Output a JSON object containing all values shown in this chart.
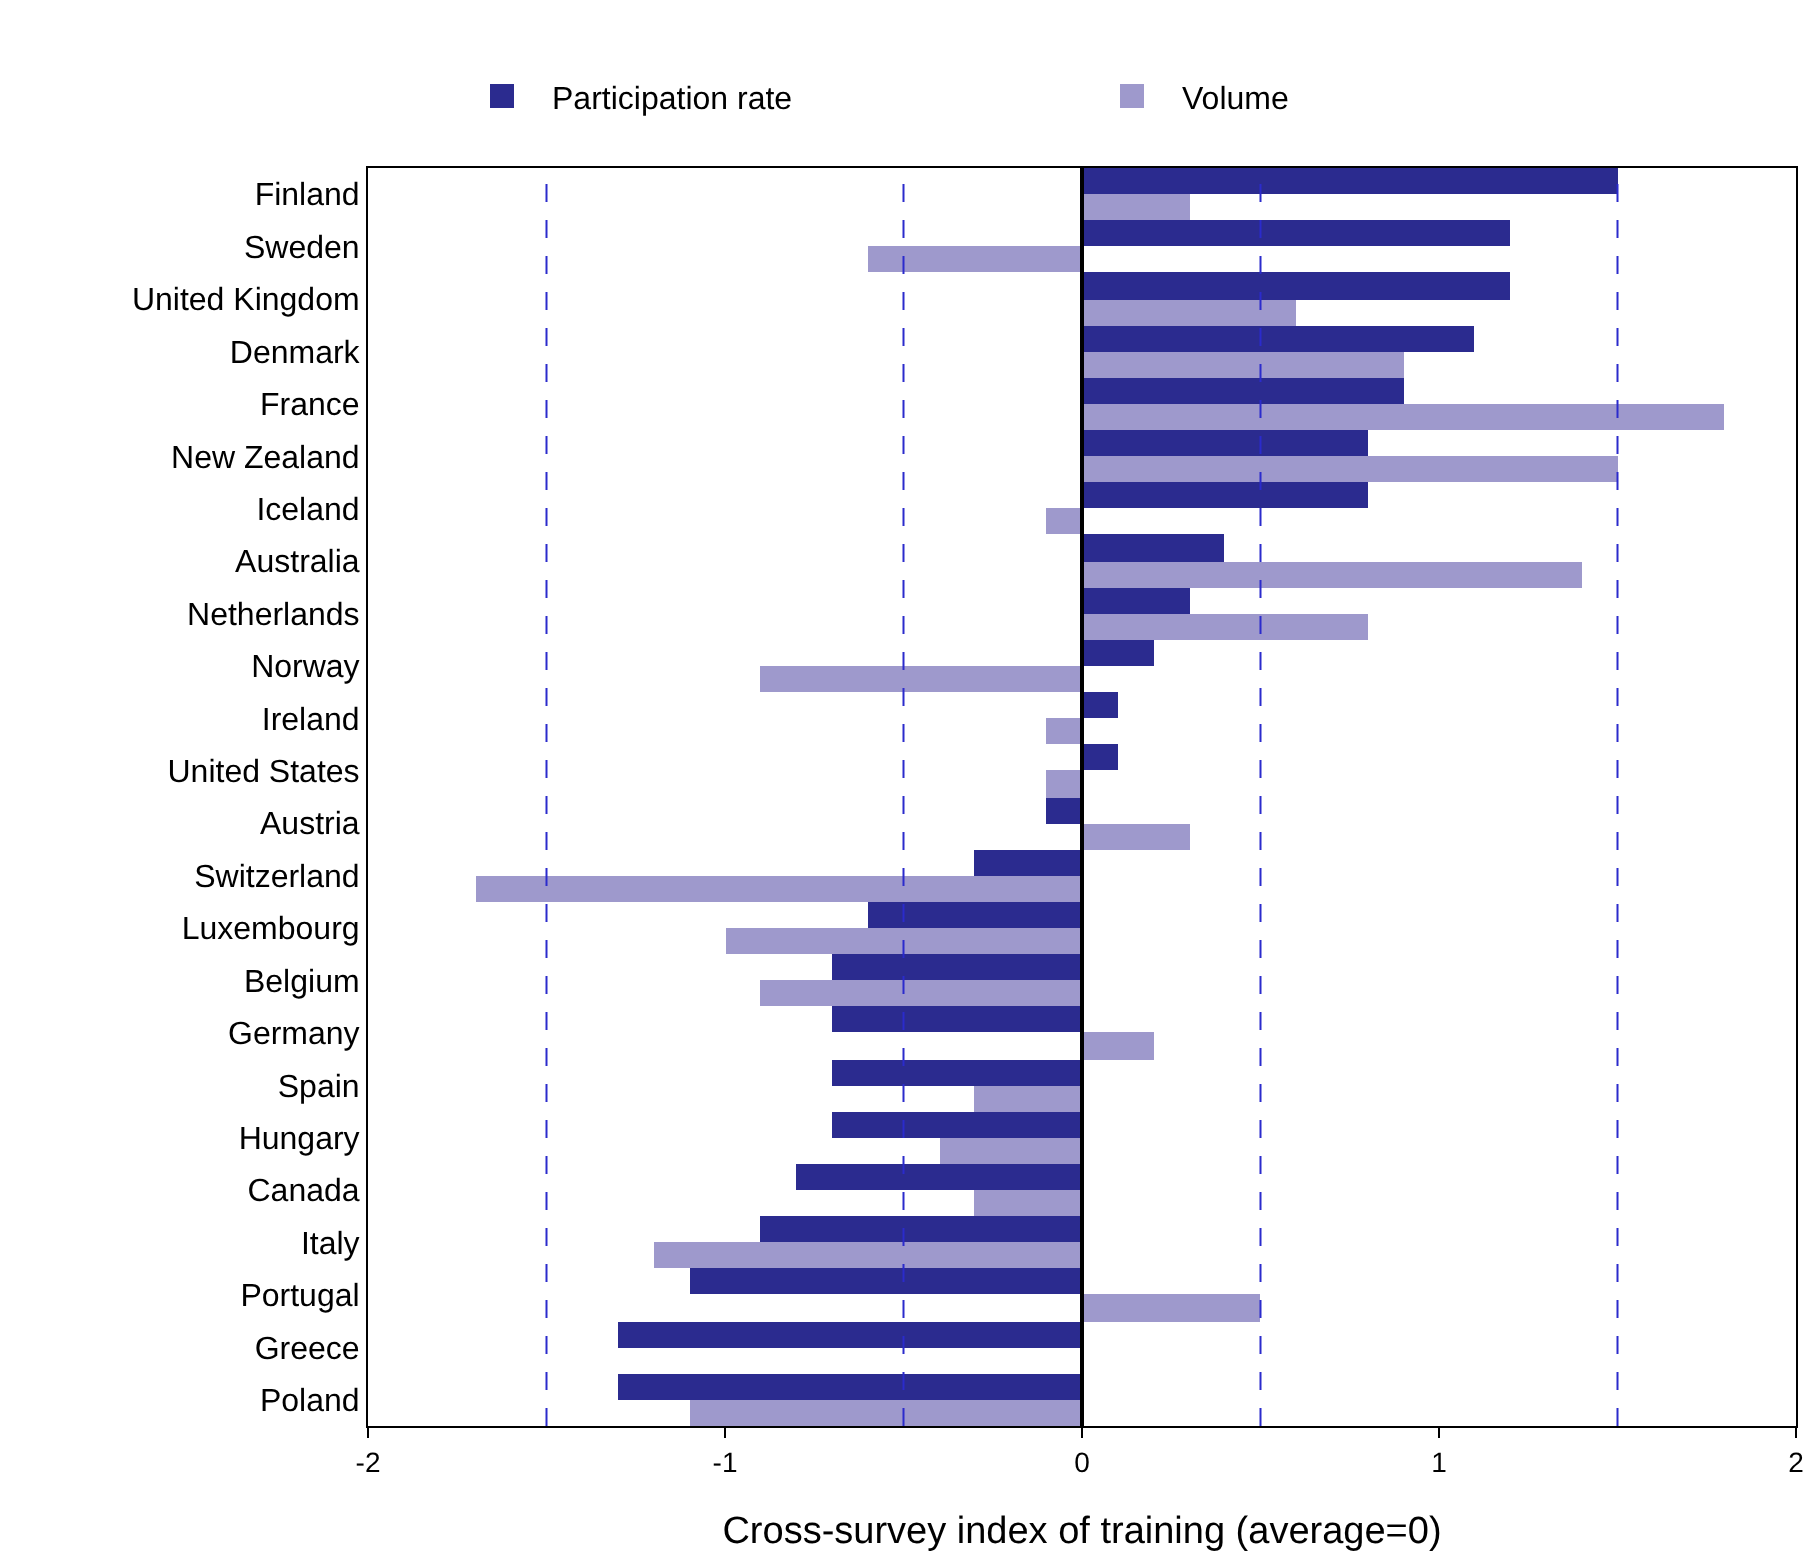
{
  "chart_data": {
    "type": "bar",
    "orientation": "horizontal",
    "xlabel": "Cross-survey index of training (average=0)",
    "categories": [
      "Finland",
      "Sweden",
      "United Kingdom",
      "Denmark",
      "France",
      "New Zealand",
      "Iceland",
      "Australia",
      "Netherlands",
      "Norway",
      "Ireland",
      "United States",
      "Austria",
      "Switzerland",
      "Luxembourg",
      "Belgium",
      "Germany",
      "Spain",
      "Hungary",
      "Canada",
      "Italy",
      "Portugal",
      "Greece",
      "Poland"
    ],
    "series": [
      {
        "name": "Participation rate",
        "color": "#2b2b8f",
        "values": [
          1.5,
          1.2,
          1.2,
          1.1,
          0.9,
          0.8,
          0.8,
          0.4,
          0.3,
          0.2,
          0.1,
          0.1,
          -0.1,
          -0.3,
          -0.6,
          -0.7,
          -0.7,
          -0.7,
          -0.7,
          -0.8,
          -0.9,
          -1.1,
          -1.3,
          -1.3
        ]
      },
      {
        "name": "Volume",
        "color": "#9e99cc",
        "values": [
          0.3,
          -0.6,
          0.6,
          0.9,
          1.8,
          1.5,
          -0.1,
          1.4,
          0.8,
          -0.9,
          -0.1,
          -0.1,
          0.3,
          -1.7,
          -1.0,
          -0.9,
          0.2,
          -0.3,
          -0.4,
          -0.3,
          -1.2,
          0.5,
          null,
          -1.1
        ]
      }
    ],
    "xlim": [
      -2,
      2
    ],
    "xticks": [
      -2,
      -1,
      0,
      1,
      2
    ],
    "ref_lines": [
      {
        "axis": "x",
        "value": -1.5,
        "color": "#2b2bcc",
        "line_style": "dashed"
      },
      {
        "axis": "x",
        "value": -0.5,
        "color": "#2b2bcc",
        "line_style": "dashed"
      },
      {
        "axis": "x",
        "value": 0.5,
        "color": "#2b2bcc",
        "line_style": "dashed"
      },
      {
        "axis": "x",
        "value": 1.5,
        "color": "#2b2bcc",
        "line_style": "dashed"
      },
      {
        "axis": "x",
        "value": 0,
        "color": "#000000",
        "line_style": "solid"
      }
    ],
    "legend": "top"
  }
}
